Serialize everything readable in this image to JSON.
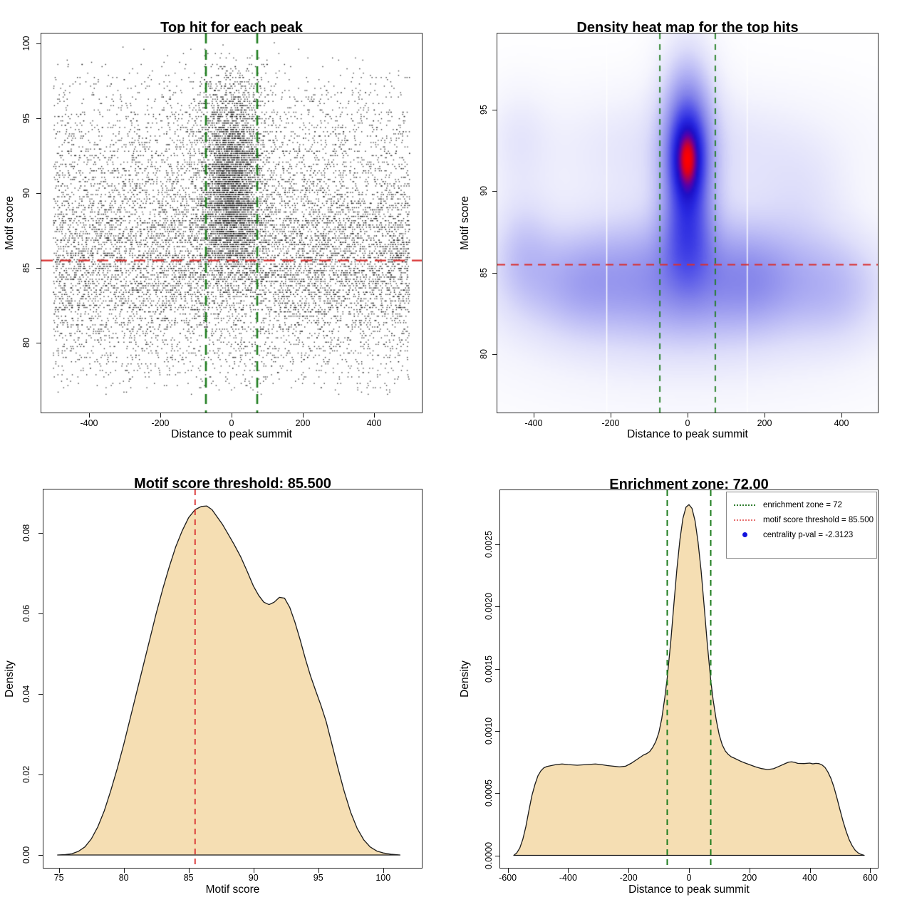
{
  "figure": {
    "background": "#ffffff"
  },
  "chart_data": [
    {
      "id": "top-hit-scatter",
      "type": "scatter",
      "title": "Top hit for each peak",
      "xlabel": "Distance to peak summit",
      "ylabel": "Motif score",
      "xlim": [
        -534,
        534
      ],
      "ylim": [
        75.34,
        100.67
      ],
      "xticks": [
        -400,
        -200,
        0,
        200,
        400
      ],
      "xtick_labels": [
        "-400",
        "-200",
        "0",
        "200",
        "400"
      ],
      "yticks": [
        80,
        85,
        90,
        95,
        100
      ],
      "ytick_labels": [
        "80",
        "85",
        "90",
        "95",
        "100"
      ],
      "point_color": "#1c1c1c",
      "point_size": 1.4,
      "point_alpha": 0.88,
      "y_quantize_step": 0.145,
      "vlines": {
        "x": [
          -72,
          72
        ],
        "color": "#1e7d1e",
        "dash": [
          14,
          9
        ],
        "width": 2.6
      },
      "hline": {
        "y": 85.5,
        "color": "#d92f2f",
        "dash": [
          16,
          10
        ],
        "width": 2.2
      },
      "generator": {
        "seed": 20240217,
        "clusters": [
          {
            "n": 5200,
            "x": {
              "type": "uniform",
              "min": -500,
              "max": 500
            },
            "y": {
              "type": "normal",
              "mean": 84.2,
              "sd": 2.6,
              "min": 76.5,
              "max": 100
            }
          },
          {
            "n": 3000,
            "x": {
              "type": "uniform",
              "min": -500,
              "max": 500
            },
            "y": {
              "type": "normal",
              "mean": 88.2,
              "sd": 2.2,
              "min": 76.5,
              "max": 100
            }
          },
          {
            "n": 1800,
            "x": {
              "type": "uniform",
              "min": -500,
              "max": 500
            },
            "y": {
              "type": "normal",
              "mean": 93.0,
              "sd": 2.2,
              "min": 76.5,
              "max": 100.2
            }
          },
          {
            "n": 420,
            "x": {
              "type": "uniform",
              "min": -500,
              "max": 500
            },
            "y": {
              "type": "normal",
              "mean": 80.0,
              "sd": 1.6,
              "min": 76.5,
              "max": 100
            }
          },
          {
            "n": 220,
            "x": {
              "type": "uniform",
              "min": -500,
              "max": 500
            },
            "y": {
              "type": "normal",
              "mean": 96.8,
              "sd": 1.6,
              "min": 76.5,
              "max": 100.3
            }
          },
          {
            "n": 160,
            "x": {
              "type": "uniform",
              "min": -500,
              "max": 500
            },
            "y": {
              "type": "uniform",
              "min": 76.6,
              "max": 79.5
            }
          },
          {
            "n": 2700,
            "x": {
              "type": "normal",
              "mean": 0,
              "sd": 40,
              "min": -170,
              "max": 170
            },
            "y": {
              "type": "normal",
              "mean": 91.3,
              "sd": 2.7,
              "min": 84.5,
              "max": 99.3
            }
          },
          {
            "n": 700,
            "x": {
              "type": "normal",
              "mean": 0,
              "sd": 52,
              "min": -190,
              "max": 190
            },
            "y": {
              "type": "normal",
              "mean": 87.6,
              "sd": 1.6,
              "min": 83.5,
              "max": 99
            }
          },
          {
            "n": 260,
            "x": {
              "type": "normal",
              "mean": 0,
              "sd": 55,
              "min": -200,
              "max": 200
            },
            "y": {
              "type": "normal",
              "mean": 96.3,
              "sd": 1.5,
              "min": 90,
              "max": 100.2
            }
          }
        ]
      }
    },
    {
      "id": "density-heatmap",
      "type": "heatmap",
      "title": "Density heat map for the top hits",
      "xlabel": "Distance to peak summit",
      "ylabel": "Motif score",
      "xlim": [
        -494.4,
        494.4
      ],
      "ylim": [
        76.44,
        99.67
      ],
      "xticks": [
        -400,
        -200,
        0,
        200,
        400
      ],
      "xtick_labels": [
        "-400",
        "-200",
        "0",
        "200",
        "400"
      ],
      "yticks": [
        80,
        85,
        90,
        95
      ],
      "ytick_labels": [
        "80",
        "85",
        "90",
        "95"
      ],
      "vlines": {
        "x": [
          -72,
          72
        ],
        "color": "#1e7d1e",
        "dash": [
          8,
          7
        ],
        "width": 1.8
      },
      "hline": {
        "y": 85.5,
        "color": "#d92f2f",
        "dash": [
          11,
          8
        ],
        "width": 1.8
      },
      "white_artifact_lines_x": [
        -210,
        155
      ],
      "gamma": 0.82,
      "color_stops": [
        {
          "t": 0,
          "c": "#ffffff"
        },
        {
          "t": 0.07,
          "c": "#f4f4fd"
        },
        {
          "t": 0.16,
          "c": "#dedefa"
        },
        {
          "t": 0.28,
          "c": "#b4b4f4"
        },
        {
          "t": 0.42,
          "c": "#8484ea"
        },
        {
          "t": 0.55,
          "c": "#5050e8"
        },
        {
          "t": 0.67,
          "c": "#2828e0"
        },
        {
          "t": 0.77,
          "c": "#1c10c8"
        },
        {
          "t": 0.85,
          "c": "#5a00a8"
        },
        {
          "t": 0.91,
          "c": "#a00060"
        },
        {
          "t": 0.96,
          "c": "#e00018"
        },
        {
          "t": 1,
          "c": "#ff0000"
        }
      ],
      "density_components": [
        {
          "a": 0.85,
          "x": 0,
          "y": 84.8,
          "sx": 270,
          "sy": 2.6
        },
        {
          "a": 0.3,
          "x": -430,
          "y": 86.5,
          "sx": 55,
          "sy": 2.4
        },
        {
          "a": 0.22,
          "x": -290,
          "y": 84.3,
          "sx": 80,
          "sy": 2.1
        },
        {
          "a": 0.24,
          "x": 390,
          "y": 83.9,
          "sx": 85,
          "sy": 2.3
        },
        {
          "a": 0.18,
          "x": 180,
          "y": 84.6,
          "sx": 70,
          "sy": 2.0
        },
        {
          "a": 0.28,
          "x": 0,
          "y": 92.6,
          "sx": 290,
          "sy": 2.6
        },
        {
          "a": 0.16,
          "x": -440,
          "y": 93.3,
          "sx": 55,
          "sy": 2.2
        },
        {
          "a": 0.14,
          "x": 300,
          "y": 89.8,
          "sx": 80,
          "sy": 2.2
        },
        {
          "a": 0.18,
          "x": 0,
          "y": 81.5,
          "sx": 380,
          "sy": 3.5
        },
        {
          "a": 1.0,
          "x": 0,
          "y": 90.6,
          "sx": 47,
          "sy": 3.5
        },
        {
          "a": 0.55,
          "x": 0,
          "y": 93.8,
          "sx": 40,
          "sy": 2.4
        },
        {
          "a": 1.3,
          "x": 0,
          "y": 91.9,
          "sx": 26,
          "sy": 1.6
        },
        {
          "a": 0.42,
          "x": 0,
          "y": 87.6,
          "sx": 40,
          "sy": 1.9
        },
        {
          "a": 0.22,
          "x": 0,
          "y": 97.2,
          "sx": 55,
          "sy": 2.6
        }
      ]
    },
    {
      "id": "motif-score-density",
      "type": "area",
      "title": "Motif score threshold: 85.500",
      "xlabel": "Motif score",
      "ylabel": "Density",
      "xlim": [
        73.81,
        102.98
      ],
      "ylim": [
        -0.00319,
        0.0908
      ],
      "xticks": [
        75,
        80,
        85,
        90,
        95,
        100
      ],
      "xtick_labels": [
        "75",
        "80",
        "85",
        "90",
        "95",
        "100"
      ],
      "yticks": [
        0,
        0.02,
        0.04,
        0.06,
        0.08
      ],
      "ytick_labels": [
        "0.00",
        "0.02",
        "0.04",
        "0.06",
        "0.08"
      ],
      "fill": "#f5deb3",
      "stroke": "#1a1a1a",
      "vlines": {
        "x": [
          85.5
        ],
        "color": "#d92f2f",
        "dash": [
          8,
          6
        ],
        "width": 1.8
      },
      "curve": [
        [
          74.9,
          0
        ],
        [
          75.5,
          0.0001
        ],
        [
          76,
          0.0003
        ],
        [
          76.5,
          0.0009
        ],
        [
          77,
          0.002
        ],
        [
          77.5,
          0.004
        ],
        [
          78,
          0.007
        ],
        [
          78.5,
          0.011
        ],
        [
          79,
          0.016
        ],
        [
          79.5,
          0.0215
        ],
        [
          80,
          0.0275
        ],
        [
          80.5,
          0.034
        ],
        [
          81,
          0.0405
        ],
        [
          81.5,
          0.047
        ],
        [
          82,
          0.0535
        ],
        [
          82.5,
          0.06
        ],
        [
          83,
          0.066
        ],
        [
          83.5,
          0.0715
        ],
        [
          84,
          0.0765
        ],
        [
          84.5,
          0.0805
        ],
        [
          85,
          0.0838
        ],
        [
          85.5,
          0.0858
        ],
        [
          86,
          0.0866
        ],
        [
          86.4,
          0.0867
        ],
        [
          86.8,
          0.0858
        ],
        [
          87.2,
          0.084
        ],
        [
          87.6,
          0.0822
        ],
        [
          88,
          0.08
        ],
        [
          88.5,
          0.0772
        ],
        [
          89,
          0.0742
        ],
        [
          89.5,
          0.0706
        ],
        [
          90,
          0.0668
        ],
        [
          90.4,
          0.0645
        ],
        [
          90.8,
          0.0628
        ],
        [
          91.2,
          0.0622
        ],
        [
          91.6,
          0.0628
        ],
        [
          92,
          0.064
        ],
        [
          92.4,
          0.0638
        ],
        [
          92.8,
          0.0615
        ],
        [
          93.2,
          0.0578
        ],
        [
          93.6,
          0.0535
        ],
        [
          94,
          0.0488
        ],
        [
          94.4,
          0.0445
        ],
        [
          94.8,
          0.0408
        ],
        [
          95.2,
          0.0372
        ],
        [
          95.6,
          0.0332
        ],
        [
          96,
          0.0282
        ],
        [
          96.5,
          0.0218
        ],
        [
          97,
          0.0158
        ],
        [
          97.5,
          0.0106
        ],
        [
          98,
          0.0066
        ],
        [
          98.5,
          0.0038
        ],
        [
          99,
          0.002
        ],
        [
          99.5,
          0.001
        ],
        [
          100,
          0.0005
        ],
        [
          100.6,
          0.0002
        ],
        [
          101.3,
          0
        ]
      ]
    },
    {
      "id": "summit-distance-density",
      "type": "area",
      "title": "Enrichment zone: 72.00",
      "xlabel": "Distance to peak summit",
      "ylabel": "Density",
      "xlim": [
        -625,
        625
      ],
      "ylim": [
        -0.0001,
        0.002936
      ],
      "xticks": [
        -600,
        -400,
        -200,
        0,
        200,
        400,
        600
      ],
      "xtick_labels": [
        "-600",
        "-400",
        "-200",
        "0",
        "200",
        "400",
        "600"
      ],
      "yticks": [
        0,
        0.0005,
        0.001,
        0.0015,
        0.002,
        0.0025
      ],
      "ytick_labels": [
        "0.0000",
        "0.0005",
        "0.0010",
        "0.0015",
        "0.0020",
        "0.0025"
      ],
      "fill": "#f5deb3",
      "stroke": "#1a1a1a",
      "vlines": {
        "x": [
          -72,
          72
        ],
        "color": "#1e7d1e",
        "dash": [
          8,
          6
        ],
        "width": 2
      },
      "curve": [
        [
          -580,
          0
        ],
        [
          -570,
          2e-05
        ],
        [
          -560,
          6e-05
        ],
        [
          -550,
          0.00013
        ],
        [
          -540,
          0.00023
        ],
        [
          -530,
          0.00036
        ],
        [
          -520,
          0.00048
        ],
        [
          -510,
          0.00057
        ],
        [
          -500,
          0.00064
        ],
        [
          -490,
          0.00068
        ],
        [
          -480,
          0.000705
        ],
        [
          -470,
          0.000715
        ],
        [
          -460,
          0.00072
        ],
        [
          -440,
          0.00073
        ],
        [
          -420,
          0.000735
        ],
        [
          -400,
          0.00073
        ],
        [
          -370,
          0.000725
        ],
        [
          -340,
          0.00073
        ],
        [
          -310,
          0.000735
        ],
        [
          -290,
          0.00073
        ],
        [
          -270,
          0.000722
        ],
        [
          -250,
          0.000717
        ],
        [
          -230,
          0.000712
        ],
        [
          -210,
          0.000717
        ],
        [
          -190,
          0.000742
        ],
        [
          -170,
          0.000775
        ],
        [
          -150,
          0.000808
        ],
        [
          -140,
          0.000818
        ],
        [
          -130,
          0.000835
        ],
        [
          -120,
          0.000868
        ],
        [
          -110,
          0.000915
        ],
        [
          -100,
          0.000985
        ],
        [
          -90,
          0.0011
        ],
        [
          -80,
          0.00127
        ],
        [
          -72,
          0.00143
        ],
        [
          -60,
          0.00173
        ],
        [
          -50,
          0.00202
        ],
        [
          -40,
          0.0023
        ],
        [
          -30,
          0.00254
        ],
        [
          -20,
          0.00271
        ],
        [
          -10,
          0.0028
        ],
        [
          0,
          0.00282
        ],
        [
          10,
          0.00279
        ],
        [
          20,
          0.00269
        ],
        [
          30,
          0.00252
        ],
        [
          40,
          0.00229
        ],
        [
          50,
          0.00201
        ],
        [
          60,
          0.00172
        ],
        [
          72,
          0.00141
        ],
        [
          80,
          0.00125
        ],
        [
          90,
          0.00109
        ],
        [
          100,
          0.00097
        ],
        [
          110,
          0.00089
        ],
        [
          120,
          0.00084
        ],
        [
          130,
          0.000812
        ],
        [
          140,
          0.000792
        ],
        [
          150,
          0.000782
        ],
        [
          160,
          0.00077
        ],
        [
          170,
          0.000758
        ],
        [
          180,
          0.000748
        ],
        [
          200,
          0.00073
        ],
        [
          220,
          0.000712
        ],
        [
          240,
          0.000698
        ],
        [
          260,
          0.00069
        ],
        [
          280,
          0.000697
        ],
        [
          300,
          0.000718
        ],
        [
          320,
          0.00074
        ],
        [
          330,
          0.00075
        ],
        [
          340,
          0.000752
        ],
        [
          350,
          0.000748
        ],
        [
          360,
          0.00074
        ],
        [
          380,
          0.000738
        ],
        [
          400,
          0.000742
        ],
        [
          410,
          0.000736
        ],
        [
          420,
          0.00074
        ],
        [
          430,
          0.000738
        ],
        [
          440,
          0.000728
        ],
        [
          450,
          0.000708
        ],
        [
          460,
          0.00067
        ],
        [
          470,
          0.000618
        ],
        [
          480,
          0.000548
        ],
        [
          490,
          0.000458
        ],
        [
          500,
          0.000365
        ],
        [
          510,
          0.000275
        ],
        [
          520,
          0.000195
        ],
        [
          530,
          0.000128
        ],
        [
          540,
          7.8e-05
        ],
        [
          550,
          4.2e-05
        ],
        [
          560,
          2e-05
        ],
        [
          570,
          8e-06
        ],
        [
          580,
          0
        ]
      ],
      "legend": {
        "entries": [
          {
            "sample": "dotted-line",
            "color": "#2e7d2e",
            "label": "enrichment zone = 72"
          },
          {
            "sample": "dotted-line",
            "color": "#e87070",
            "label": "motif score threshold = 85.500"
          },
          {
            "sample": "point",
            "color": "#1111dd",
            "label": "centrality p-val = -2.3123"
          }
        ]
      }
    }
  ]
}
